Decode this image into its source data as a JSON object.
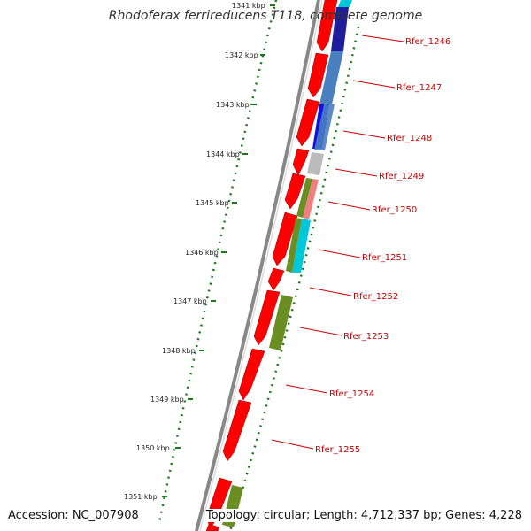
{
  "title": "Rhodoferax ferrireducens T118, complete genome",
  "footer": {
    "accession": "Accession: NC_007908",
    "summary": "Topology: circular; Length: 4,712,337 bp; Genes: 4,228"
  },
  "colors": {
    "backbone": "#888888",
    "kbp_ticks": "#1a7a1a",
    "gene_label": "#cc0000",
    "forward_strand": "#ff0000",
    "cog_blue": "#4a7fc0",
    "cog_darkblue": "#0000cc",
    "cog_grey": "#bbbbbb",
    "cog_pink": "#f08080",
    "cog_olive": "#6b8e23",
    "cog_cyan": "#00c8d8"
  },
  "kbp_ruler": [
    {
      "label": "1341 kbp"
    },
    {
      "label": "1342 kbp"
    },
    {
      "label": "1343 kbp"
    },
    {
      "label": "1344 kbp"
    },
    {
      "label": "1345 kbp"
    },
    {
      "label": "1346 kbp"
    },
    {
      "label": "1347 kbp"
    },
    {
      "label": "1348 kbp"
    },
    {
      "label": "1349 kbp"
    },
    {
      "label": "1350 kbp"
    },
    {
      "label": "1351 kbp"
    }
  ],
  "gene_labels": [
    {
      "label": "Rfer_1246"
    },
    {
      "label": "Rfer_1247"
    },
    {
      "label": "Rfer_1248"
    },
    {
      "label": "Rfer_1249"
    },
    {
      "label": "Rfer_1250"
    },
    {
      "label": "Rfer_1251"
    },
    {
      "label": "Rfer_1252"
    },
    {
      "label": "Rfer_1253"
    },
    {
      "label": "Rfer_1254"
    },
    {
      "label": "Rfer_1255"
    }
  ]
}
